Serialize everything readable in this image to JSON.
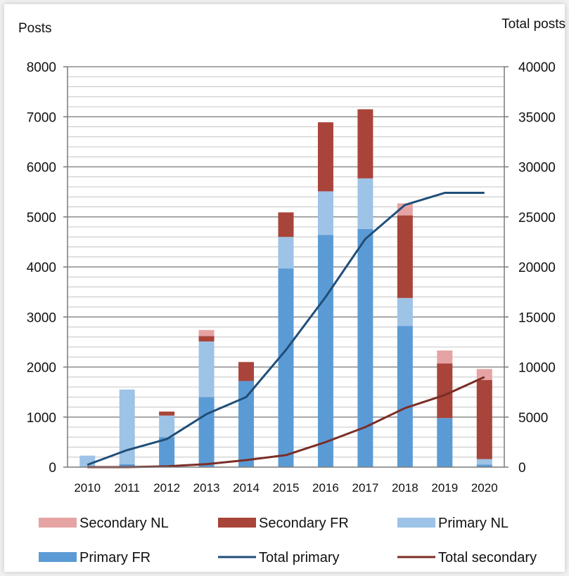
{
  "chart_data": {
    "type": "bar",
    "stacked": true,
    "title": "",
    "ylabel_left": "Posts",
    "ylabel_right": "Total posts",
    "categories": [
      "2010",
      "2011",
      "2012",
      "2013",
      "2014",
      "2015",
      "2016",
      "2017",
      "2018",
      "2019",
      "2020"
    ],
    "ylim_left": [
      0,
      8000
    ],
    "ylim_right": [
      0,
      40000
    ],
    "yticks_left": [
      "0",
      "1000",
      "2000",
      "3000",
      "4000",
      "5000",
      "6000",
      "7000",
      "8000"
    ],
    "yticks_right": [
      "0",
      "5000",
      "10000",
      "15000",
      "20000",
      "25000",
      "30000",
      "35000",
      "40000"
    ],
    "grid": true,
    "legend_position": "bottom",
    "series": [
      {
        "name": "Primary FR",
        "type": "bar",
        "axis": "left",
        "color": "#5b9bd5",
        "values": [
          0,
          60,
          600,
          1400,
          1720,
          3970,
          4640,
          4760,
          2820,
          980,
          50
        ]
      },
      {
        "name": "Primary NL",
        "type": "bar",
        "axis": "left",
        "color": "#9dc3e6",
        "values": [
          230,
          1490,
          430,
          1110,
          0,
          630,
          870,
          1010,
          560,
          0,
          110
        ]
      },
      {
        "name": "Secondary FR",
        "type": "bar",
        "axis": "left",
        "color": "#a9443a",
        "values": [
          0,
          0,
          80,
          110,
          380,
          490,
          1380,
          1380,
          1650,
          1090,
          1580
        ]
      },
      {
        "name": "Secondary NL",
        "type": "bar",
        "axis": "left",
        "color": "#e6a3a3",
        "values": [
          0,
          0,
          0,
          120,
          0,
          0,
          0,
          0,
          240,
          260,
          220
        ]
      },
      {
        "name": "Total primary",
        "type": "line",
        "axis": "right",
        "color": "#1f4e79",
        "values": [
          230,
          1700,
          2800,
          5300,
          7000,
          11700,
          17000,
          22800,
          26200,
          27400,
          27400
        ]
      },
      {
        "name": "Total secondary",
        "type": "line",
        "axis": "right",
        "color": "#7b2d26",
        "values": [
          0,
          0,
          80,
          300,
          700,
          1200,
          2500,
          4000,
          5900,
          7200,
          9000
        ]
      }
    ],
    "legend": [
      {
        "name": "Secondary NL",
        "kind": "bar",
        "color": "#e6a3a3"
      },
      {
        "name": "Secondary FR",
        "kind": "bar",
        "color": "#a9443a"
      },
      {
        "name": "Primary NL",
        "kind": "bar",
        "color": "#9dc3e6"
      },
      {
        "name": "Primary FR",
        "kind": "bar",
        "color": "#5b9bd5"
      },
      {
        "name": "Total primary",
        "kind": "line",
        "color": "#1f4e79"
      },
      {
        "name": "Total secondary",
        "kind": "line",
        "color": "#7b2d26"
      }
    ]
  }
}
